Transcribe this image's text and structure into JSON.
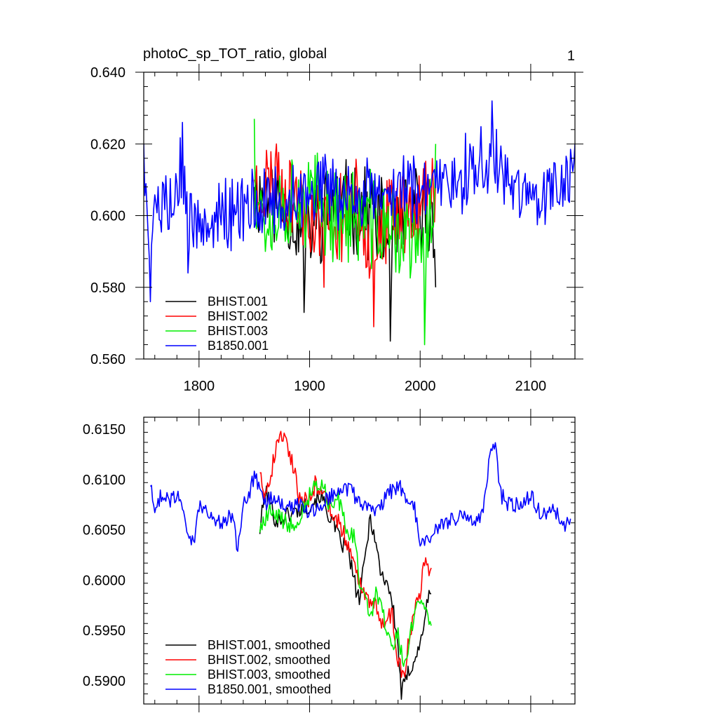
{
  "figure": {
    "title": "photoC_sp_TOT_ratio, global",
    "page_number": "1"
  },
  "chart_data": [
    {
      "type": "line",
      "title": "photoC_sp_TOT_ratio, global",
      "xlabel": "",
      "ylabel": "",
      "xlim": [
        1750,
        2140
      ],
      "ylim": [
        0.56,
        0.64
      ],
      "x_ticks": [
        1800,
        1900,
        2000,
        2100
      ],
      "x_tick_labels": [
        "1800",
        "1900",
        "2000",
        "2100"
      ],
      "y_ticks": [
        0.56,
        0.58,
        0.6,
        0.62,
        0.64
      ],
      "y_tick_labels": [
        "0.560",
        "0.580",
        "0.600",
        "0.620",
        "0.640"
      ],
      "legend_position": "bottom-left",
      "grid": false,
      "series": [
        {
          "name": "BHIST.001",
          "color": "#000000",
          "start_year": 1850,
          "end_year": 2014,
          "mean": 0.604,
          "noise": 0.011,
          "seed": 11,
          "anchors": [
            [
              1850,
              0.608
            ],
            [
              1860,
              0.612
            ],
            [
              1880,
              0.598
            ],
            [
              1895,
              0.573
            ],
            [
              1920,
              0.603
            ],
            [
              1960,
              0.595
            ],
            [
              1973,
              0.565
            ],
            [
              1985,
              0.592
            ],
            [
              2000,
              0.598
            ],
            [
              2014,
              0.58
            ]
          ]
        },
        {
          "name": "BHIST.002",
          "color": "#ff0000",
          "start_year": 1850,
          "end_year": 2014,
          "mean": 0.605,
          "noise": 0.011,
          "seed": 23,
          "anchors": [
            [
              1850,
              0.61
            ],
            [
              1870,
              0.62
            ],
            [
              1913,
              0.58
            ],
            [
              1940,
              0.6
            ],
            [
              1958,
              0.569
            ],
            [
              1980,
              0.595
            ],
            [
              2000,
              0.6
            ],
            [
              2014,
              0.61
            ]
          ]
        },
        {
          "name": "BHIST.003",
          "color": "#00ee00",
          "start_year": 1850,
          "end_year": 2014,
          "mean": 0.603,
          "noise": 0.012,
          "seed": 37,
          "anchors": [
            [
              1850,
              0.627
            ],
            [
              1860,
              0.59
            ],
            [
              1890,
              0.61
            ],
            [
              1930,
              0.595
            ],
            [
              1965,
              0.588
            ],
            [
              2004,
              0.564
            ],
            [
              2014,
              0.62
            ]
          ]
        },
        {
          "name": "B1850.001",
          "color": "#0000ff",
          "start_year": 1750,
          "end_year": 2140,
          "mean": 0.606,
          "noise": 0.009,
          "seed": 5,
          "anchors": [
            [
              1750,
              0.62
            ],
            [
              1756,
              0.576
            ],
            [
              1785,
              0.626
            ],
            [
              1790,
              0.584
            ],
            [
              1900,
              0.606
            ],
            [
              2000,
              0.605
            ],
            [
              2065,
              0.632
            ],
            [
              2100,
              0.605
            ],
            [
              2140,
              0.62
            ]
          ]
        }
      ]
    },
    {
      "type": "line",
      "title": "",
      "xlabel": "",
      "ylabel": "",
      "xlim": [
        1750,
        2140
      ],
      "ylim": [
        0.5877,
        0.6162
      ],
      "x_ticks": [
        1800,
        1900,
        2000,
        2100
      ],
      "y_ticks": [
        0.59,
        0.595,
        0.6,
        0.605,
        0.61,
        0.615
      ],
      "y_tick_labels": [
        "0.5900",
        "0.5950",
        "0.6000",
        "0.6050",
        "0.6100",
        "0.6150"
      ],
      "legend_position": "bottom-left",
      "grid": false,
      "series": [
        {
          "name": "BHIST.001, smoothed",
          "color": "#000000",
          "noise": 0.0009,
          "seed": 101,
          "points": [
            [
              1855,
              0.605
            ],
            [
              1860,
              0.609
            ],
            [
              1870,
              0.6058
            ],
            [
              1880,
              0.6065
            ],
            [
              1890,
              0.607
            ],
            [
              1900,
              0.6075
            ],
            [
              1910,
              0.6085
            ],
            [
              1915,
              0.607
            ],
            [
              1920,
              0.606
            ],
            [
              1925,
              0.6045
            ],
            [
              1930,
              0.6035
            ],
            [
              1935,
              0.603
            ],
            [
              1940,
              0.6
            ],
            [
              1945,
              0.598
            ],
            [
              1950,
              0.602
            ],
            [
              1955,
              0.6065
            ],
            [
              1960,
              0.6035
            ],
            [
              1965,
              0.6005
            ],
            [
              1970,
              0.6
            ],
            [
              1975,
              0.5975
            ],
            [
              1980,
              0.5935
            ],
            [
              1983,
              0.5887
            ],
            [
              1990,
              0.591
            ],
            [
              2000,
              0.5935
            ],
            [
              2005,
              0.597
            ],
            [
              2010,
              0.599
            ]
          ]
        },
        {
          "name": "BHIST.002, smoothed",
          "color": "#ff0000",
          "noise": 0.0009,
          "seed": 202,
          "points": [
            [
              1855,
              0.611
            ],
            [
              1860,
              0.6085
            ],
            [
              1865,
              0.6105
            ],
            [
              1870,
              0.6135
            ],
            [
              1875,
              0.6145
            ],
            [
              1880,
              0.6135
            ],
            [
              1885,
              0.6115
            ],
            [
              1890,
              0.6085
            ],
            [
              1900,
              0.608
            ],
            [
              1905,
              0.6095
            ],
            [
              1910,
              0.609
            ],
            [
              1915,
              0.608
            ],
            [
              1920,
              0.607
            ],
            [
              1930,
              0.605
            ],
            [
              1940,
              0.6015
            ],
            [
              1945,
              0.6
            ],
            [
              1950,
              0.5985
            ],
            [
              1960,
              0.5975
            ],
            [
              1965,
              0.596
            ],
            [
              1975,
              0.5965
            ],
            [
              1980,
              0.592
            ],
            [
              1985,
              0.5905
            ],
            [
              1990,
              0.594
            ],
            [
              1995,
              0.5975
            ],
            [
              2000,
              0.599
            ],
            [
              2005,
              0.6025
            ],
            [
              2010,
              0.6005
            ]
          ]
        },
        {
          "name": "BHIST.003, smoothed",
          "color": "#00ee00",
          "noise": 0.0009,
          "seed": 303,
          "points": [
            [
              1855,
              0.605
            ],
            [
              1865,
              0.607
            ],
            [
              1870,
              0.6065
            ],
            [
              1880,
              0.6055
            ],
            [
              1890,
              0.606
            ],
            [
              1900,
              0.6085
            ],
            [
              1905,
              0.6095
            ],
            [
              1910,
              0.6095
            ],
            [
              1915,
              0.6085
            ],
            [
              1920,
              0.607
            ],
            [
              1925,
              0.6085
            ],
            [
              1930,
              0.6065
            ],
            [
              1935,
              0.604
            ],
            [
              1940,
              0.6045
            ],
            [
              1945,
              0.6
            ],
            [
              1950,
              0.598
            ],
            [
              1955,
              0.5965
            ],
            [
              1960,
              0.5985
            ],
            [
              1965,
              0.5975
            ],
            [
              1970,
              0.595
            ],
            [
              1975,
              0.5935
            ],
            [
              1980,
              0.5945
            ],
            [
              1985,
              0.5915
            ],
            [
              1990,
              0.594
            ],
            [
              1995,
              0.5965
            ],
            [
              2000,
              0.598
            ],
            [
              2005,
              0.5975
            ],
            [
              2010,
              0.5955
            ]
          ]
        },
        {
          "name": "B1850.001, smoothed",
          "color": "#0000ff",
          "noise": 0.0008,
          "seed": 404,
          "points": [
            [
              1756,
              0.6095
            ],
            [
              1760,
              0.6065
            ],
            [
              1765,
              0.6085
            ],
            [
              1775,
              0.608
            ],
            [
              1782,
              0.6085
            ],
            [
              1790,
              0.6045
            ],
            [
              1795,
              0.6035
            ],
            [
              1800,
              0.6075
            ],
            [
              1810,
              0.6065
            ],
            [
              1820,
              0.6055
            ],
            [
              1830,
              0.6065
            ],
            [
              1835,
              0.603
            ],
            [
              1840,
              0.6075
            ],
            [
              1845,
              0.6085
            ],
            [
              1850,
              0.6105
            ],
            [
              1860,
              0.6075
            ],
            [
              1870,
              0.6085
            ],
            [
              1880,
              0.607
            ],
            [
              1890,
              0.6075
            ],
            [
              1900,
              0.6065
            ],
            [
              1910,
              0.6075
            ],
            [
              1920,
              0.6085
            ],
            [
              1930,
              0.6095
            ],
            [
              1940,
              0.6085
            ],
            [
              1945,
              0.608
            ],
            [
              1950,
              0.6075
            ],
            [
              1960,
              0.6065
            ],
            [
              1970,
              0.6085
            ],
            [
              1980,
              0.6095
            ],
            [
              1990,
              0.608
            ],
            [
              1995,
              0.607
            ],
            [
              2000,
              0.6035
            ],
            [
              2005,
              0.6035
            ],
            [
              2010,
              0.6045
            ],
            [
              2020,
              0.6055
            ],
            [
              2030,
              0.606
            ],
            [
              2040,
              0.6065
            ],
            [
              2050,
              0.6055
            ],
            [
              2058,
              0.6075
            ],
            [
              2063,
              0.6125
            ],
            [
              2068,
              0.6135
            ],
            [
              2073,
              0.6085
            ],
            [
              2080,
              0.6075
            ],
            [
              2090,
              0.6075
            ],
            [
              2100,
              0.6085
            ],
            [
              2110,
              0.6065
            ],
            [
              2120,
              0.607
            ],
            [
              2130,
              0.6055
            ],
            [
              2136,
              0.6055
            ]
          ]
        }
      ]
    }
  ]
}
